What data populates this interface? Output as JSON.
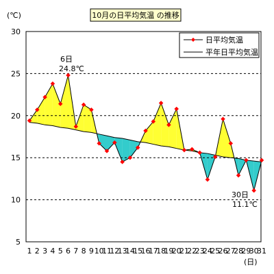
{
  "chart_data": {
    "type": "line",
    "title": "10月の日平均気温 の推移",
    "ylabel": "(℃)",
    "xlabel": "(日)",
    "ylim": [
      5,
      30
    ],
    "y_ticks": [
      "5",
      "10",
      "15",
      "20",
      "25",
      "30"
    ],
    "x_ticks": [
      "1",
      "2",
      "3",
      "4",
      "5",
      "6",
      "7",
      "8",
      "9",
      "10",
      "11",
      "12",
      "13",
      "14",
      "15",
      "16",
      "17",
      "18",
      "19",
      "20",
      "21",
      "22",
      "23",
      "24",
      "25",
      "26",
      "27",
      "28",
      "29",
      "30",
      "31"
    ],
    "x": [
      1,
      2,
      3,
      4,
      5,
      6,
      7,
      8,
      9,
      10,
      11,
      12,
      13,
      14,
      15,
      16,
      17,
      18,
      19,
      20,
      21,
      22,
      23,
      24,
      25,
      26,
      27,
      28,
      29,
      30,
      31
    ],
    "gridlines_y": [
      10,
      15,
      20,
      25
    ],
    "series": [
      {
        "name": "日平均気温",
        "color": "#ff0000",
        "values": [
          19.4,
          20.7,
          22.2,
          23.8,
          21.4,
          24.8,
          18.7,
          21.3,
          20.7,
          16.7,
          15.8,
          16.8,
          14.5,
          15.0,
          16.2,
          18.2,
          19.3,
          21.5,
          18.9,
          20.8,
          15.9,
          16.0,
          15.6,
          12.4,
          15.1,
          19.6,
          16.7,
          12.9,
          14.7,
          11.1,
          14.7
        ]
      },
      {
        "name": "平年日平均気温",
        "color": "#000000",
        "values": [
          19.2,
          19.1,
          18.9,
          18.8,
          18.6,
          18.5,
          18.3,
          18.1,
          18.0,
          17.8,
          17.6,
          17.4,
          17.3,
          17.1,
          16.9,
          16.8,
          16.6,
          16.4,
          16.3,
          16.1,
          15.9,
          15.8,
          15.6,
          15.5,
          15.3,
          15.1,
          15.0,
          14.9,
          14.7,
          14.6,
          14.5
        ]
      }
    ],
    "fill_above_color": "#ffff33",
    "fill_below_color": "#33cccc",
    "annotations": [
      {
        "x": 6,
        "y": 24.8,
        "day": "6日",
        "value": "24.8℃"
      },
      {
        "x": 30,
        "y": 11.1,
        "day": "30日",
        "value": "11.1℃"
      }
    ],
    "legend_position": "top-right"
  }
}
